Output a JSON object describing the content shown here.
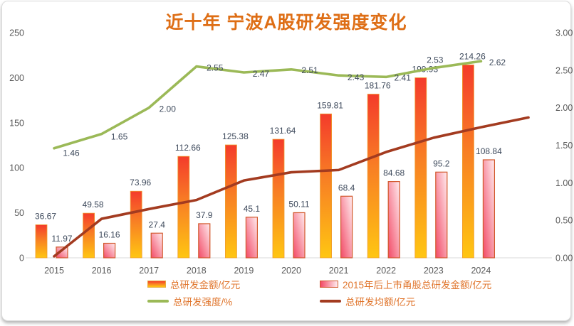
{
  "colors": {
    "title": "#de6e15",
    "legend_text": "#e0752c",
    "data_label": "#3e4a5c",
    "axis_label": "#595959",
    "axis_line": "#d9d9d9",
    "orange_bar_top": "#f43b2b",
    "orange_bar_mid": "#f87f24",
    "orange_bar_bottom": "#ffc612",
    "orange_bar_border": "#ef9c2e",
    "pink_bar_dark": "#f24a66",
    "pink_bar_light": "#ffedf0",
    "pink_bar_border": "#d2572b",
    "green_line": "#9bb957",
    "dark_red_line": "#a33b20"
  },
  "chart_data": {
    "type": "combo bar+line, dual axis",
    "title": "近十年 宁波A股研发强度变化",
    "categories": [
      "2015",
      "2016",
      "2017",
      "2018",
      "2019",
      "2020",
      "2021",
      "2022",
      "2023",
      "2024"
    ],
    "left_axis": {
      "ylim": [
        0,
        250
      ],
      "tick_labels": [
        "0",
        "50",
        "100",
        "150",
        "200",
        "250"
      ]
    },
    "right_axis": {
      "ylim": [
        0,
        3.0
      ],
      "tick_labels": [
        "0.00",
        "0.50",
        "1.00",
        "1.50",
        "2.00",
        "2.50",
        "3.00"
      ]
    },
    "grid": false,
    "legend_position": "bottom",
    "series": [
      {
        "name": "总研发金额/亿元",
        "type": "bar",
        "axis": "left",
        "labels": [
          "36.67",
          "49.58",
          "73.96",
          "112.66",
          "125.38",
          "131.64",
          "159.81",
          "181.76",
          "199.93",
          "214.26"
        ],
        "values": [
          36.67,
          49.58,
          73.96,
          112.66,
          125.38,
          131.64,
          159.81,
          181.76,
          199.93,
          214.26
        ]
      },
      {
        "name": "2015年后上市甬股总研发金额/亿元",
        "type": "bar",
        "axis": "left",
        "labels": [
          "11.97",
          "16.16",
          "27.4",
          "37.9",
          "45.1",
          "50.11",
          "68.4",
          "84.68",
          "95.2",
          "108.84"
        ],
        "values": [
          11.97,
          16.16,
          27.4,
          37.9,
          45.1,
          50.11,
          68.4,
          84.68,
          95.2,
          108.84
        ]
      },
      {
        "name": "总研发强度/%",
        "type": "line",
        "axis": "right",
        "labels": [
          "1.46",
          "1.65",
          "2.00",
          "2.55",
          "2.47",
          "2.51",
          "2.43",
          "2.41",
          "2.53",
          "2.62"
        ],
        "values": [
          1.46,
          1.65,
          2.0,
          2.55,
          2.47,
          2.51,
          2.43,
          2.41,
          2.53,
          2.62
        ]
      },
      {
        "name": "总研发均额/亿元",
        "type": "line",
        "axis": "right",
        "labels_shown": false,
        "values_estimated_from_pixels": true,
        "values": [
          0.02,
          0.52,
          0.65,
          0.77,
          1.03,
          1.14,
          1.17,
          1.41,
          1.6,
          1.74
        ],
        "extra_unlabeled_point_beyond_2024": 1.87
      }
    ]
  },
  "legend": {
    "items": [
      {
        "label": "总研发金额/亿元",
        "swatch": "orange-gradient-bar"
      },
      {
        "label": "2015年后上市甬股总研发金额/亿元",
        "swatch": "pink-gradient-bar"
      },
      {
        "label": "总研发强度/%",
        "swatch": "green-line"
      },
      {
        "label": "总研发均额/亿元",
        "swatch": "dark-red-line"
      }
    ]
  }
}
